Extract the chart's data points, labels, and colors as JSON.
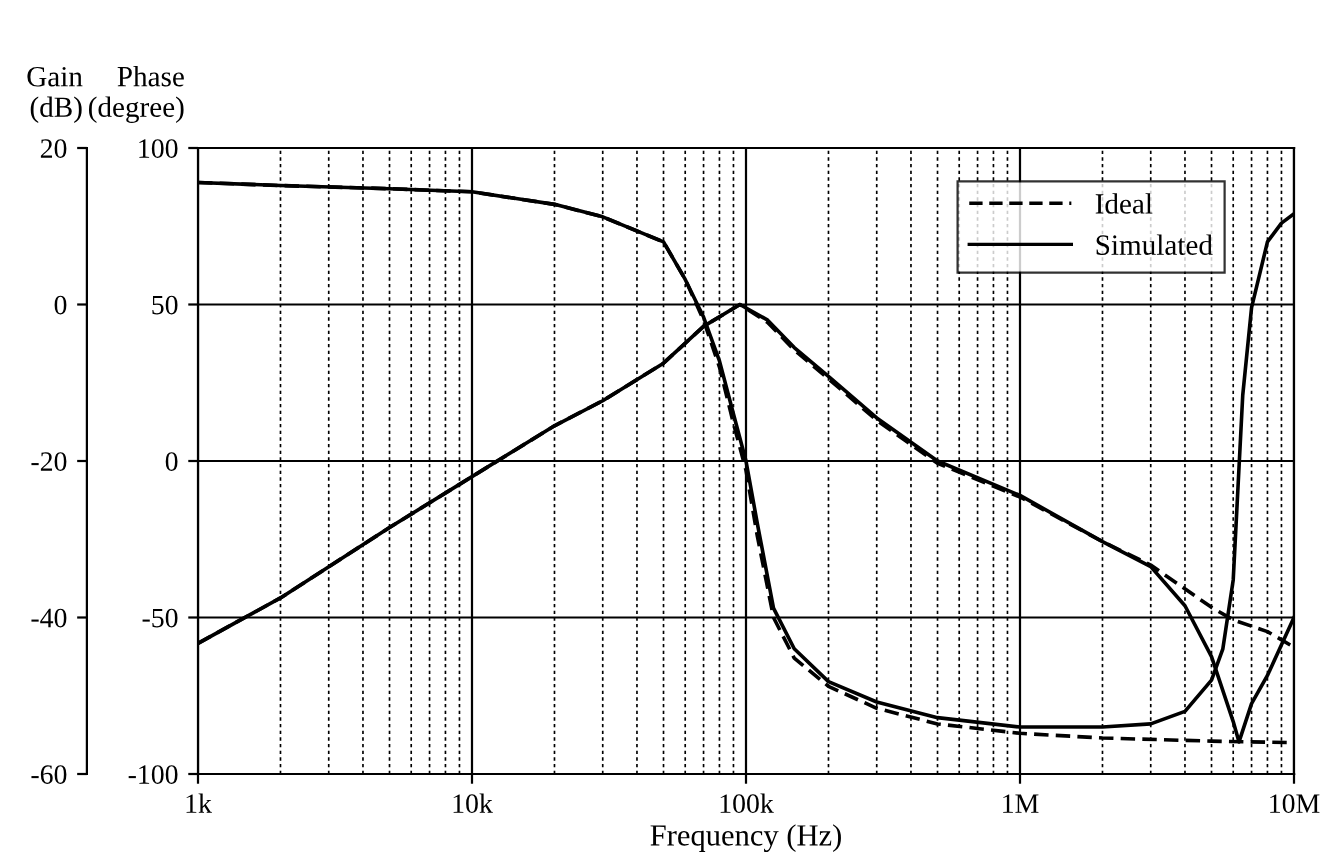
{
  "chart_data": {
    "type": "line",
    "xlabel": "Frequency (Hz)",
    "ylabel": "Phase\n(degree)",
    "y2label": "Gain\n(dB)",
    "log": "x",
    "grid": true,
    "legend": "top right",
    "xlim": [
      1000,
      10000000
    ],
    "xticks": [
      {
        "value": 1000,
        "label": "1k"
      },
      {
        "value": 10000,
        "label": "10k"
      },
      {
        "value": 100000,
        "label": "100k"
      },
      {
        "value": 1000000,
        "label": "1M"
      },
      {
        "value": 10000000,
        "label": "10M"
      }
    ],
    "ylim": [
      -100,
      100
    ],
    "yticks": [
      -100,
      -50,
      0,
      50,
      100
    ],
    "y2lim": [
      -60,
      20
    ],
    "y2ticks": [
      -60,
      -40,
      -20,
      0,
      20
    ],
    "series": [
      {
        "name": "Ideal",
        "color": "#000000",
        "line_style": "dashed",
        "axis": "y2",
        "x": [
          1000,
          2000,
          5000,
          10000,
          20000,
          30000,
          50000,
          70000,
          95000,
          120000,
          150000,
          200000,
          300000,
          500000,
          1000000,
          2000000,
          3000000,
          5000000,
          6000000,
          8000000,
          10000000
        ],
        "values": [
          -43.3,
          -37.5,
          -28.5,
          -22,
          -15.5,
          -12.3,
          -7.5,
          -2.8,
          0,
          -2.3,
          -5.8,
          -9.5,
          -14.8,
          -20.3,
          -24.6,
          -30.3,
          -33.3,
          -38.7,
          -40.3,
          -41.8,
          -43.8
        ]
      },
      {
        "name": "Simulated",
        "color": "#000000",
        "line_style": "solid",
        "axis": "y2",
        "x": [
          1000,
          2000,
          5000,
          10000,
          20000,
          30000,
          50000,
          70000,
          95000,
          120000,
          150000,
          200000,
          300000,
          500000,
          1000000,
          2000000,
          3000000,
          4000000,
          5000000,
          6000000,
          6300000,
          7000000,
          8000000,
          10000000
        ],
        "values": [
          -43.3,
          -37.5,
          -28.5,
          -22,
          -15.5,
          -12.3,
          -7.5,
          -2.8,
          0,
          -2,
          -5.5,
          -9.2,
          -14.5,
          -20,
          -24.4,
          -30.3,
          -33.5,
          -38.5,
          -45,
          -53.3,
          -55.9,
          -51,
          -47.4,
          -40
        ]
      },
      {
        "color": "#000000",
        "line_style": "dashed",
        "x": [
          1000,
          2000,
          5000,
          10000,
          20000,
          30000,
          50000,
          60000,
          70000,
          80000,
          90000,
          100000,
          110000,
          126000,
          150000,
          200000,
          300000,
          500000,
          1000000,
          2000000,
          5000000,
          10000000
        ],
        "values": [
          89,
          88,
          87,
          86,
          82,
          78,
          70,
          58,
          45,
          30,
          12,
          -3,
          -24,
          -50,
          -63,
          -72,
          -79,
          -84,
          -87,
          -88.5,
          -89.5,
          -90
        ]
      },
      {
        "color": "#000000",
        "line_style": "solid",
        "x": [
          1000,
          2000,
          5000,
          10000,
          20000,
          30000,
          50000,
          60000,
          70000,
          80000,
          90000,
          100000,
          110000,
          126000,
          150000,
          200000,
          300000,
          500000,
          1000000,
          2000000,
          3000000,
          4000000,
          5000000,
          5500000,
          6000000,
          6500000,
          7000000,
          8000000,
          9000000,
          10000000
        ],
        "values": [
          89,
          88,
          87,
          86,
          82,
          78,
          70,
          58,
          46,
          32,
          15,
          0,
          -20,
          -47,
          -60,
          -70.5,
          -77,
          -82,
          -85,
          -85,
          -84,
          -80,
          -70,
          -60,
          -38,
          21,
          49,
          70,
          76,
          79
        ]
      }
    ]
  }
}
